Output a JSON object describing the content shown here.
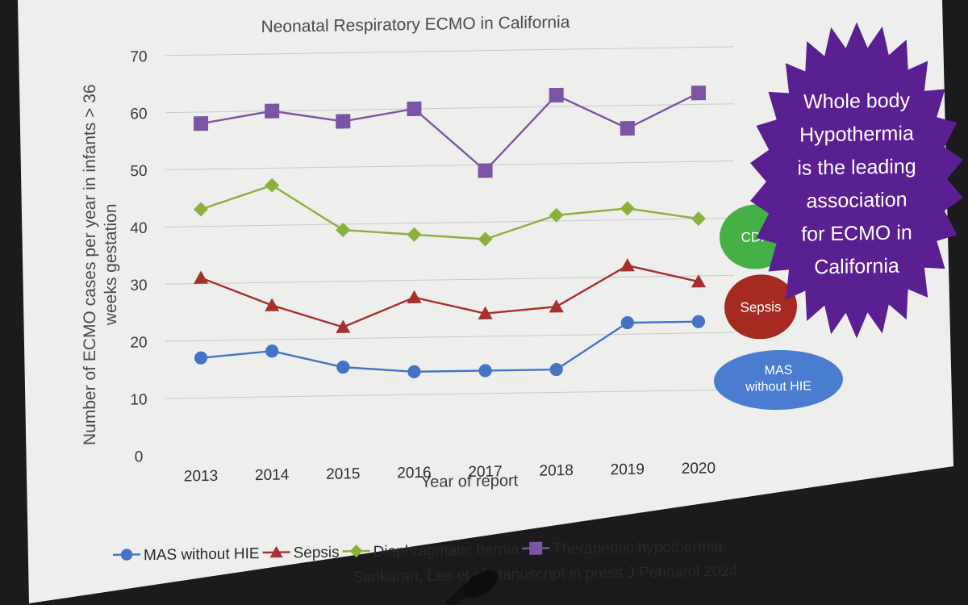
{
  "chart_data": {
    "type": "line",
    "title": "Neonatal Respiratory ECMO in California",
    "xlabel": "Year of report",
    "ylabel": "Number of ECMO cases per year in infants > 36 weeks gestation",
    "ylim": [
      0,
      70
    ],
    "yticks": [
      0,
      10,
      20,
      30,
      40,
      50,
      60,
      70
    ],
    "categories": [
      "2013",
      "2014",
      "2015",
      "2016",
      "2017",
      "2018",
      "2019",
      "2020"
    ],
    "grid": true,
    "legend_position": "bottom",
    "series": [
      {
        "name": "MAS without HIE",
        "marker": "circle",
        "color": "#4472c4",
        "values": [
          17,
          18,
          15,
          14,
          14,
          14,
          22,
          22
        ]
      },
      {
        "name": "Sepsis",
        "marker": "triangle",
        "color": "#a5302d",
        "values": [
          31,
          26,
          22,
          27,
          24,
          25,
          32,
          29
        ]
      },
      {
        "name": "Diaphragmatic hernia",
        "marker": "diamond",
        "color": "#8cb03c",
        "values": [
          43,
          47,
          39,
          38,
          37,
          41,
          42,
          40
        ]
      },
      {
        "name": "Therapeutic hypothermia",
        "marker": "square",
        "color": "#7b54a3",
        "values": [
          58,
          60,
          58,
          60,
          49,
          62,
          56,
          62
        ]
      }
    ]
  },
  "annotations": {
    "starburst": {
      "lines": [
        "Whole body",
        "Hypothermia",
        "is the leading",
        "association",
        "for ECMO in",
        "California"
      ],
      "color": "#5a1f91"
    },
    "cdh": {
      "label": "CDH",
      "color": "#45b045"
    },
    "sepsis": {
      "label": "Sepsis",
      "color": "#a52a22"
    },
    "mas": {
      "lines": [
        "MAS",
        "without HIE"
      ],
      "color": "#4a7cd0"
    }
  },
  "citation": "Sankaran, Lee et al Manuscript in press J Perinatol 2024"
}
